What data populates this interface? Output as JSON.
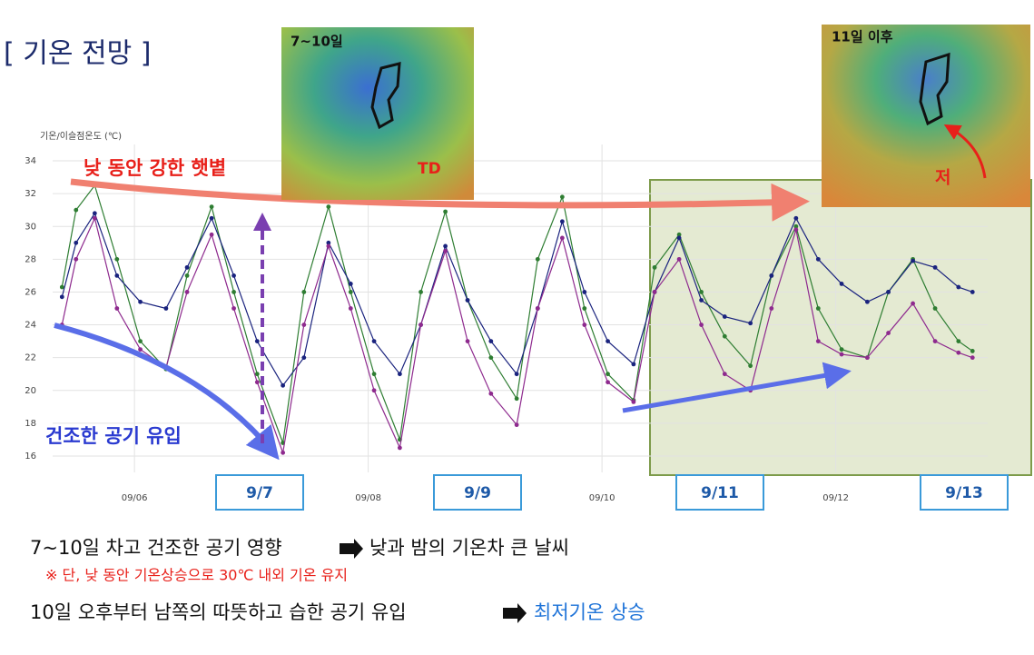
{
  "slide_title": "[ 기온 전망 ]",
  "chart_data": {
    "type": "line",
    "ylabel": "기온/이슬점온도 (℃)",
    "x": [
      5.38,
      5.5,
      5.66,
      5.85,
      6.05,
      6.27,
      6.45,
      6.66,
      6.85,
      7.05,
      7.27,
      7.45,
      7.66,
      7.85,
      8.05,
      8.27,
      8.45,
      8.66,
      8.85,
      9.05,
      9.27,
      9.45,
      9.66,
      9.85,
      10.05,
      10.27,
      10.45,
      10.66,
      10.85,
      11.05,
      11.27,
      11.45,
      11.66,
      11.85,
      12.05,
      12.27,
      12.45,
      12.66,
      12.85,
      13.05,
      13.17
    ],
    "series": [
      {
        "color": "#2e7d32",
        "values": [
          26.3,
          31,
          32.5,
          28,
          23,
          21.3,
          27,
          31.2,
          26,
          21,
          16.8,
          26,
          31.2,
          26,
          21,
          17,
          26,
          30.9,
          25.5,
          22,
          19.5,
          28,
          31.8,
          25,
          21,
          19.4,
          27.5,
          29.5,
          26,
          23.3,
          21.5,
          27,
          30,
          25,
          22.5,
          22,
          26,
          28,
          25,
          23,
          22.4
        ]
      },
      {
        "color": "#1a237e",
        "values": [
          25.7,
          29,
          30.8,
          27,
          25.4,
          25,
          27.5,
          30.5,
          27,
          23,
          20.3,
          22,
          29,
          26.5,
          23,
          21,
          24,
          28.8,
          25.5,
          23,
          21,
          25,
          30.3,
          26,
          23,
          21.6,
          26,
          29.3,
          25.5,
          24.5,
          24.1,
          27,
          30.5,
          28,
          26.5,
          25.4,
          26,
          27.9,
          27.5,
          26.3,
          26
        ]
      },
      {
        "color": "#8e2a8e",
        "values": [
          24,
          28,
          30.5,
          25,
          22.5,
          21.4,
          26,
          29.5,
          25,
          20.5,
          16.2,
          24,
          28.8,
          25,
          20,
          16.5,
          24,
          28.5,
          23,
          19.8,
          17.9,
          25,
          29.3,
          24,
          20.5,
          19.3,
          26,
          28,
          24,
          21,
          20,
          25,
          29.8,
          23,
          22.2,
          22,
          23.5,
          25.3,
          23,
          22.3,
          22
        ]
      }
    ],
    "xlim": [
      5.3,
      13.3
    ],
    "xticks": [
      {
        "value": 6,
        "label": "09/06"
      },
      {
        "value": 8,
        "label": "09/08"
      },
      {
        "value": 10,
        "label": "09/10"
      },
      {
        "value": 12,
        "label": "09/12"
      }
    ],
    "ylim": [
      15,
      35
    ],
    "yticks": [
      16,
      18,
      20,
      22,
      24,
      26,
      28,
      30,
      32,
      34
    ],
    "grid": true,
    "annotations": [
      "낮 동안 강한 햇볕",
      "건조한 공기 유입"
    ]
  },
  "maps": [
    {
      "label": "7~10일",
      "marker": "TD"
    },
    {
      "label": "11일 이후",
      "marker": "저"
    }
  ],
  "date_boxes": [
    "9/7",
    "9/9",
    "9/11",
    "9/13"
  ],
  "notes": {
    "line1": [
      "7~10일 차고 건조한 공기 영향",
      "낮과 밤의 기온차 큰 날씨"
    ],
    "line2": "※ 단, 낮 동안 기온상승으로 30℃ 내외 기온 유지",
    "line3": [
      "10일 오후부터 남쪽의 따뜻하고 습한 공기 유입",
      "최저기온 상승"
    ]
  }
}
